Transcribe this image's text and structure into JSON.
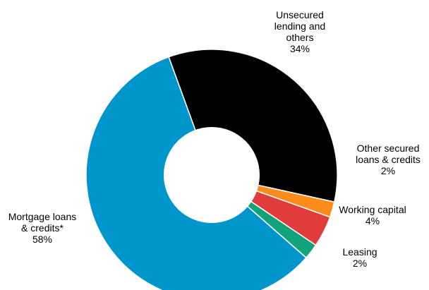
{
  "chart_data": {
    "type": "pie",
    "title": "",
    "slices": [
      {
        "label": [
          "Unsecured",
          "lending and",
          "others"
        ],
        "value": 34,
        "pct": "34%",
        "color": "#000000"
      },
      {
        "label": [
          "Other secured",
          "loans & credits"
        ],
        "value": 2,
        "pct": "2%",
        "color": "#FF8C1A"
      },
      {
        "label": [
          "Working capital"
        ],
        "value": 4,
        "pct": "4%",
        "color": "#E03C3C"
      },
      {
        "label": [
          "Leasing"
        ],
        "value": 2,
        "pct": "2%",
        "color": "#13A37A"
      },
      {
        "label": [
          "Mortgage loans",
          "& credits*"
        ],
        "value": 58,
        "pct": "58%",
        "color": "#0096CC"
      }
    ]
  }
}
